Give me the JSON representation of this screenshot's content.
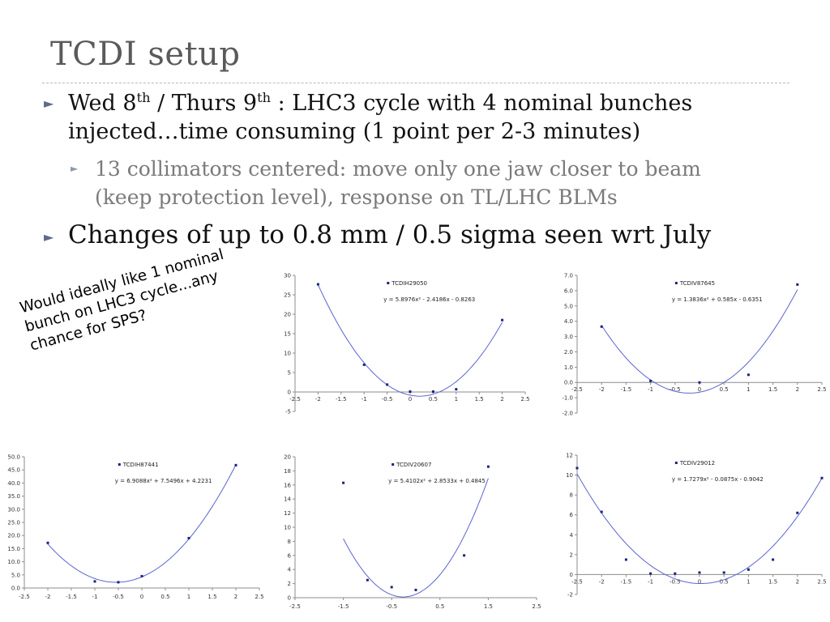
{
  "slide": {
    "title": "TCDI setup",
    "bullet1_a": "Wed 8",
    "bullet1_sup_a": "th",
    "bullet1_b": " / Thurs 9",
    "bullet1_sup_b": "th",
    "bullet1_c": " : LHC3 cycle with 4 nominal bunches",
    "bullet1_line2": "injected…time consuming (1 point per 2-3 minutes)",
    "sub_bullet_line1": "13 collimators centered: move only one jaw closer to beam",
    "sub_bullet_line2": "(keep protection level), response on TL/LHC BLMs",
    "bullet2": "Changes of up to 0.8 mm / 0.5 sigma seen wrt July",
    "note_line1": "Would ideally like 1 nominal",
    "note_line2": "bunch on LHC3 cycle...any",
    "note_line3": "chance for SPS?"
  },
  "colors": {
    "curve": "#5b64cf",
    "points": "#1a237e",
    "axis": "#8c8c8c",
    "title": "#5a5a5a"
  },
  "chart_data": [
    {
      "id": "TCDIH29050",
      "type": "scatter",
      "legend": "TCDIH29050",
      "equation": "y = 5.8976x² - 2.4186x - 0.8263",
      "fit": [
        5.8976,
        -2.4186,
        -0.8263
      ],
      "x": [
        -2,
        -1,
        -0.5,
        0,
        0.5,
        1,
        2
      ],
      "y": [
        27.7,
        7.0,
        1.9,
        0.1,
        0.1,
        0.7,
        18.5
      ],
      "xlim": [
        -2.5,
        2.5
      ],
      "ylim": [
        -5,
        30
      ],
      "xticks": [
        -2.5,
        -2,
        -1.5,
        -1,
        -0.5,
        0,
        0.5,
        1,
        1.5,
        2,
        2.5
      ],
      "yticks": [
        -5,
        0,
        5,
        10,
        15,
        20,
        25,
        30
      ],
      "curve_x": [
        -2,
        2
      ]
    },
    {
      "id": "TCDIV87645",
      "type": "scatter",
      "legend": "TCDIV87645",
      "equation": "y = 1.3836x² + 0.585x - 0.6351",
      "fit": [
        1.3836,
        0.585,
        -0.6351
      ],
      "x": [
        -2,
        -1,
        0,
        1,
        2
      ],
      "y": [
        3.65,
        0.1,
        0.0,
        0.5,
        6.4
      ],
      "xlim": [
        -2.5,
        2.5
      ],
      "ylim": [
        -2,
        7
      ],
      "xticks": [
        -2.5,
        -2,
        -1.5,
        -1,
        -0.5,
        0,
        0.5,
        1,
        1.5,
        2,
        2.5
      ],
      "yticks": [
        -2,
        -1,
        0,
        1,
        2,
        3,
        4,
        5,
        6,
        7
      ],
      "ytick_decimals": 1,
      "curve_x": [
        -2,
        2
      ]
    },
    {
      "id": "TCDIH87441",
      "type": "scatter",
      "legend": "TCDIH87441",
      "equation": "y = 6.9088x² + 7.5496x + 4.2231",
      "fit": [
        6.9088,
        7.5496,
        4.2231
      ],
      "x": [
        -2,
        -1,
        -0.5,
        0,
        1,
        2
      ],
      "y": [
        17.2,
        2.5,
        2.2,
        4.5,
        19.0,
        46.8
      ],
      "xlim": [
        -2.5,
        2.5
      ],
      "ylim": [
        0,
        50
      ],
      "xticks": [
        -2.5,
        -2,
        -1.5,
        -1,
        -0.5,
        0,
        0.5,
        1,
        1.5,
        2,
        2.5
      ],
      "yticks": [
        0,
        5,
        10,
        15,
        20,
        25,
        30,
        35,
        40,
        45,
        50
      ],
      "ytick_decimals": 1,
      "curve_x": [
        -2,
        2
      ]
    },
    {
      "id": "TCDIV20607",
      "type": "scatter",
      "legend": "TCDIV20607",
      "equation": "y = 5.4102x² + 2.8533x + 0.4845",
      "fit": [
        5.4102,
        2.8533,
        0.4845
      ],
      "x": [
        -1.5,
        -1,
        -0.5,
        0,
        1,
        1.5
      ],
      "y": [
        16.3,
        2.5,
        1.5,
        1.1,
        6.0,
        18.6
      ],
      "xlim": [
        -2.5,
        2.5
      ],
      "ylim": [
        0,
        20
      ],
      "xticks": [
        -2.5,
        -1.5,
        -0.5,
        0.5,
        1.5,
        2.5
      ],
      "yticks": [
        0,
        2,
        4,
        6,
        8,
        10,
        12,
        14,
        16,
        18,
        20
      ],
      "curve_x": [
        -1.5,
        1.5
      ]
    },
    {
      "id": "TCDIV29012",
      "type": "scatter",
      "legend": "TCDIV29012",
      "equation": "y = 1.7279x² - 0.0875x - 0.9042",
      "fit": [
        1.7279,
        -0.0875,
        -0.9042
      ],
      "x": [
        -2.5,
        -2,
        -1.5,
        -1,
        -0.5,
        0,
        0.5,
        1,
        1.5,
        2,
        2.5
      ],
      "y": [
        10.7,
        6.3,
        1.5,
        0.1,
        0.1,
        0.2,
        0.2,
        0.5,
        1.5,
        6.2,
        9.7
      ],
      "xlim": [
        -2.5,
        2.5
      ],
      "ylim": [
        -2,
        12
      ],
      "xticks": [
        -2.5,
        -2,
        -1.5,
        -1,
        -0.5,
        0,
        0.5,
        1,
        1.5,
        2,
        2.5
      ],
      "yticks": [
        -2,
        0,
        2,
        4,
        6,
        8,
        10,
        12
      ],
      "curve_x": [
        -2.5,
        2.5
      ]
    }
  ]
}
